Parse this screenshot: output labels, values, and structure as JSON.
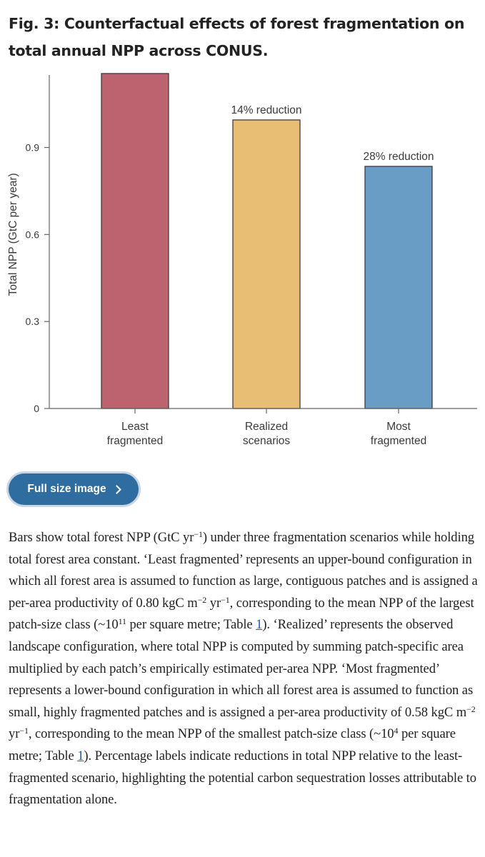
{
  "figure": {
    "title": "Fig. 3: Counterfactual effects of forest fragmentation on total annual NPP across CONUS.",
    "full_size_label": "Full size image"
  },
  "chart_data": {
    "type": "bar",
    "ylabel": "Total NPP (GtC per year)",
    "xlabel": "",
    "ylim": [
      0,
      1.15
    ],
    "yticks": [
      0,
      0.3,
      0.6,
      0.9
    ],
    "ytick_labels": [
      "0",
      "0.3",
      "0.6",
      "0.9"
    ],
    "categories": [
      {
        "line1": "Least",
        "line2": "fragmented"
      },
      {
        "line1": "Realized",
        "line2": "scenarios"
      },
      {
        "line1": "Most",
        "line2": "fragmented"
      }
    ],
    "values": [
      1.155,
      0.995,
      0.835
    ],
    "annotations": [
      "",
      "14% reduction",
      "28% reduction"
    ],
    "colors": [
      "#bd6370",
      "#e8be74",
      "#6a9dc6"
    ],
    "grid": false
  },
  "caption": {
    "p1": "Bars show total forest NPP (GtC yr",
    "p1_sup": "−1",
    "p2": ") under three fragmentation scenarios while holding total forest area constant. ‘Least fragmented’ represents an upper-bound configuration in which all forest area is assumed to function as large, contiguous patches and is assigned a per-area productivity of 0.80 kgC m",
    "p2_sup": "−2",
    "p3": " yr",
    "p3_sup": "−1",
    "p4": ", corresponding to the mean NPP of the largest patch-size class (~10",
    "p4_sup": "11",
    "p5": " per square metre; Table ",
    "ref1": "1",
    "p6": "). ‘Realized’ represents the observed landscape configuration, where total NPP is computed by summing patch-specific area multiplied by each patch’s empirically estimated per-area NPP. ‘Most fragmented’ represents a lower-bound configuration in which all forest area is assumed to function as small, highly fragmented patches and is assigned a per-area productivity of 0.58 kgC m",
    "p6_sup": "−2",
    "p7": " yr",
    "p7_sup": "−1",
    "p8": ", corresponding to the mean NPP of the smallest patch-size class (~10",
    "p8_sup": "4",
    "p9": " per square metre; Table ",
    "ref2": "1",
    "p10": "). Percentage labels indicate reductions in total NPP relative to the least-fragmented scenario, highlighting the potential carbon sequestration losses attributable to fragmentation alone."
  }
}
